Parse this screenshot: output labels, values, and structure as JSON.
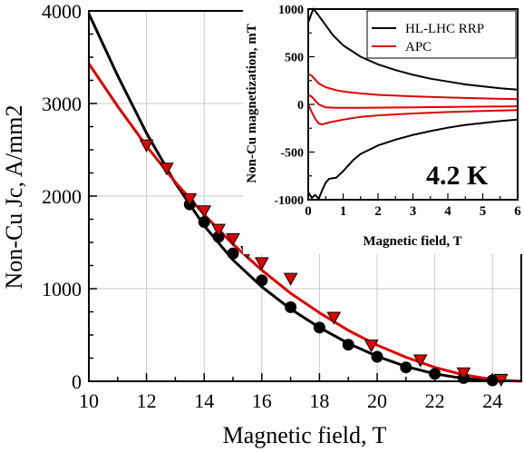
{
  "chart_data": [
    {
      "type": "scatter",
      "xlabel": "Magnetic field, T",
      "ylabel": "Non-Cu Jc, A/mm2",
      "xlim": [
        10,
        25
      ],
      "ylim": [
        0,
        4000
      ],
      "xticks": [
        10,
        12,
        14,
        16,
        18,
        20,
        22,
        24
      ],
      "yticks": [
        0,
        1000,
        2000,
        3000,
        4000
      ],
      "grid": true,
      "series": [
        {
          "color": "#000000",
          "marker": "circle",
          "points": [
            {
              "x": 13.5,
              "y": 1910
            },
            {
              "x": 14.0,
              "y": 1720
            },
            {
              "x": 14.5,
              "y": 1560
            },
            {
              "x": 15.0,
              "y": 1380
            },
            {
              "x": 16.0,
              "y": 1090
            },
            {
              "x": 17.0,
              "y": 800
            },
            {
              "x": 18.0,
              "y": 580
            },
            {
              "x": 19.0,
              "y": 395
            },
            {
              "x": 20.0,
              "y": 265
            },
            {
              "x": 21.0,
              "y": 150
            },
            {
              "x": 22.0,
              "y": 80
            },
            {
              "x": 23.0,
              "y": 35
            },
            {
              "x": 24.0,
              "y": 10
            }
          ],
          "fit": [
            {
              "x": 10.0,
              "y": 3970
            },
            {
              "x": 11.0,
              "y": 3300
            },
            {
              "x": 12.0,
              "y": 2680
            },
            {
              "x": 13.0,
              "y": 2140
            },
            {
              "x": 14.0,
              "y": 1680
            },
            {
              "x": 15.0,
              "y": 1310
            },
            {
              "x": 16.0,
              "y": 1020
            },
            {
              "x": 17.0,
              "y": 780
            },
            {
              "x": 18.0,
              "y": 580
            },
            {
              "x": 19.0,
              "y": 410
            },
            {
              "x": 20.0,
              "y": 270
            },
            {
              "x": 21.0,
              "y": 160
            },
            {
              "x": 22.0,
              "y": 80
            },
            {
              "x": 23.0,
              "y": 30
            },
            {
              "x": 24.0,
              "y": 5
            }
          ]
        },
        {
          "color": "#e00000",
          "marker": "triangle-down",
          "points": [
            {
              "x": 12.0,
              "y": 2550
            },
            {
              "x": 12.7,
              "y": 2300
            },
            {
              "x": 13.5,
              "y": 1970
            },
            {
              "x": 14.0,
              "y": 1840
            },
            {
              "x": 14.5,
              "y": 1640
            },
            {
              "x": 15.0,
              "y": 1540
            },
            {
              "x": 15.5,
              "y": 1400
            },
            {
              "x": 16.0,
              "y": 1280
            },
            {
              "x": 17.0,
              "y": 1110
            },
            {
              "x": 18.5,
              "y": 690
            },
            {
              "x": 19.8,
              "y": 390
            },
            {
              "x": 21.5,
              "y": 230
            },
            {
              "x": 23.0,
              "y": 90
            },
            {
              "x": 24.3,
              "y": 20
            }
          ],
          "fit": [
            {
              "x": 10.0,
              "y": 3430
            },
            {
              "x": 11.0,
              "y": 2970
            },
            {
              "x": 12.0,
              "y": 2540
            },
            {
              "x": 13.0,
              "y": 2150
            },
            {
              "x": 14.0,
              "y": 1800
            },
            {
              "x": 15.0,
              "y": 1480
            },
            {
              "x": 16.0,
              "y": 1200
            },
            {
              "x": 17.0,
              "y": 950
            },
            {
              "x": 18.0,
              "y": 740
            },
            {
              "x": 19.0,
              "y": 550
            },
            {
              "x": 20.0,
              "y": 390
            },
            {
              "x": 21.0,
              "y": 260
            },
            {
              "x": 22.0,
              "y": 150
            },
            {
              "x": 23.0,
              "y": 70
            },
            {
              "x": 24.0,
              "y": 20
            },
            {
              "x": 25.0,
              "y": 0
            }
          ]
        }
      ]
    },
    {
      "type": "line",
      "xlabel": "Magnetic field, T",
      "ylabel": "Non-Cu magnetization, mT",
      "annotation": "4.2 K",
      "xlim": [
        0,
        6
      ],
      "ylim": [
        -1000,
        1000
      ],
      "xticks": [
        0,
        1,
        2,
        3,
        4,
        5,
        6
      ],
      "yticks": [
        -1000,
        -500,
        0,
        500,
        1000
      ],
      "legend_position": "top-right",
      "series": [
        {
          "name": "HL-LHC RRP",
          "color": "#000000",
          "upper": [
            {
              "x": 0.0,
              "y": 860
            },
            {
              "x": 0.1,
              "y": 960
            },
            {
              "x": 0.15,
              "y": 1000
            },
            {
              "x": 0.2,
              "y": 980
            },
            {
              "x": 0.3,
              "y": 930
            },
            {
              "x": 0.5,
              "y": 830
            },
            {
              "x": 0.7,
              "y": 730
            },
            {
              "x": 1.0,
              "y": 620
            },
            {
              "x": 1.5,
              "y": 500
            },
            {
              "x": 2.0,
              "y": 420
            },
            {
              "x": 2.5,
              "y": 360
            },
            {
              "x": 3.0,
              "y": 310
            },
            {
              "x": 3.5,
              "y": 270
            },
            {
              "x": 4.0,
              "y": 240
            },
            {
              "x": 4.5,
              "y": 210
            },
            {
              "x": 5.0,
              "y": 190
            },
            {
              "x": 5.5,
              "y": 170
            },
            {
              "x": 6.0,
              "y": 155
            }
          ],
          "lower": [
            {
              "x": 0.0,
              "y": -920
            },
            {
              "x": 0.1,
              "y": -980
            },
            {
              "x": 0.2,
              "y": -950
            },
            {
              "x": 0.3,
              "y": -990
            },
            {
              "x": 0.4,
              "y": -900
            },
            {
              "x": 0.5,
              "y": -820
            },
            {
              "x": 0.6,
              "y": -780
            },
            {
              "x": 0.8,
              "y": -770
            },
            {
              "x": 1.0,
              "y": -700
            },
            {
              "x": 1.3,
              "y": -580
            },
            {
              "x": 1.5,
              "y": -520
            },
            {
              "x": 2.0,
              "y": -430
            },
            {
              "x": 2.5,
              "y": -370
            },
            {
              "x": 3.0,
              "y": -320
            },
            {
              "x": 3.5,
              "y": -280
            },
            {
              "x": 4.0,
              "y": -245
            },
            {
              "x": 4.5,
              "y": -215
            },
            {
              "x": 5.0,
              "y": -195
            },
            {
              "x": 5.5,
              "y": -175
            },
            {
              "x": 6.0,
              "y": -160
            }
          ]
        },
        {
          "name": "APC",
          "color": "#e00000",
          "upper": [
            {
              "x": 0.0,
              "y": 320
            },
            {
              "x": 0.1,
              "y": 300
            },
            {
              "x": 0.2,
              "y": 260
            },
            {
              "x": 0.3,
              "y": 220
            },
            {
              "x": 0.5,
              "y": 180
            },
            {
              "x": 0.8,
              "y": 150
            },
            {
              "x": 1.0,
              "y": 135
            },
            {
              "x": 1.5,
              "y": 115
            },
            {
              "x": 2.0,
              "y": 100
            },
            {
              "x": 3.0,
              "y": 85
            },
            {
              "x": 4.0,
              "y": 72
            },
            {
              "x": 5.0,
              "y": 63
            },
            {
              "x": 6.0,
              "y": 55
            }
          ],
          "middle": [
            {
              "x": 0.0,
              "y": 100
            },
            {
              "x": 0.1,
              "y": 80
            },
            {
              "x": 0.2,
              "y": 40
            },
            {
              "x": 0.3,
              "y": 0
            },
            {
              "x": 0.5,
              "y": -30
            },
            {
              "x": 0.8,
              "y": -35
            },
            {
              "x": 1.5,
              "y": -35
            },
            {
              "x": 3.0,
              "y": -30
            },
            {
              "x": 4.5,
              "y": -25
            },
            {
              "x": 6.0,
              "y": -20
            }
          ],
          "lower": [
            {
              "x": 0.0,
              "y": 0
            },
            {
              "x": 0.1,
              "y": -80
            },
            {
              "x": 0.2,
              "y": -150
            },
            {
              "x": 0.3,
              "y": -200
            },
            {
              "x": 0.4,
              "y": -210
            },
            {
              "x": 0.6,
              "y": -190
            },
            {
              "x": 1.0,
              "y": -160
            },
            {
              "x": 1.5,
              "y": -130
            },
            {
              "x": 2.0,
              "y": -115
            },
            {
              "x": 3.0,
              "y": -95
            },
            {
              "x": 4.0,
              "y": -80
            },
            {
              "x": 5.0,
              "y": -70
            },
            {
              "x": 6.0,
              "y": -60
            }
          ]
        }
      ]
    }
  ]
}
